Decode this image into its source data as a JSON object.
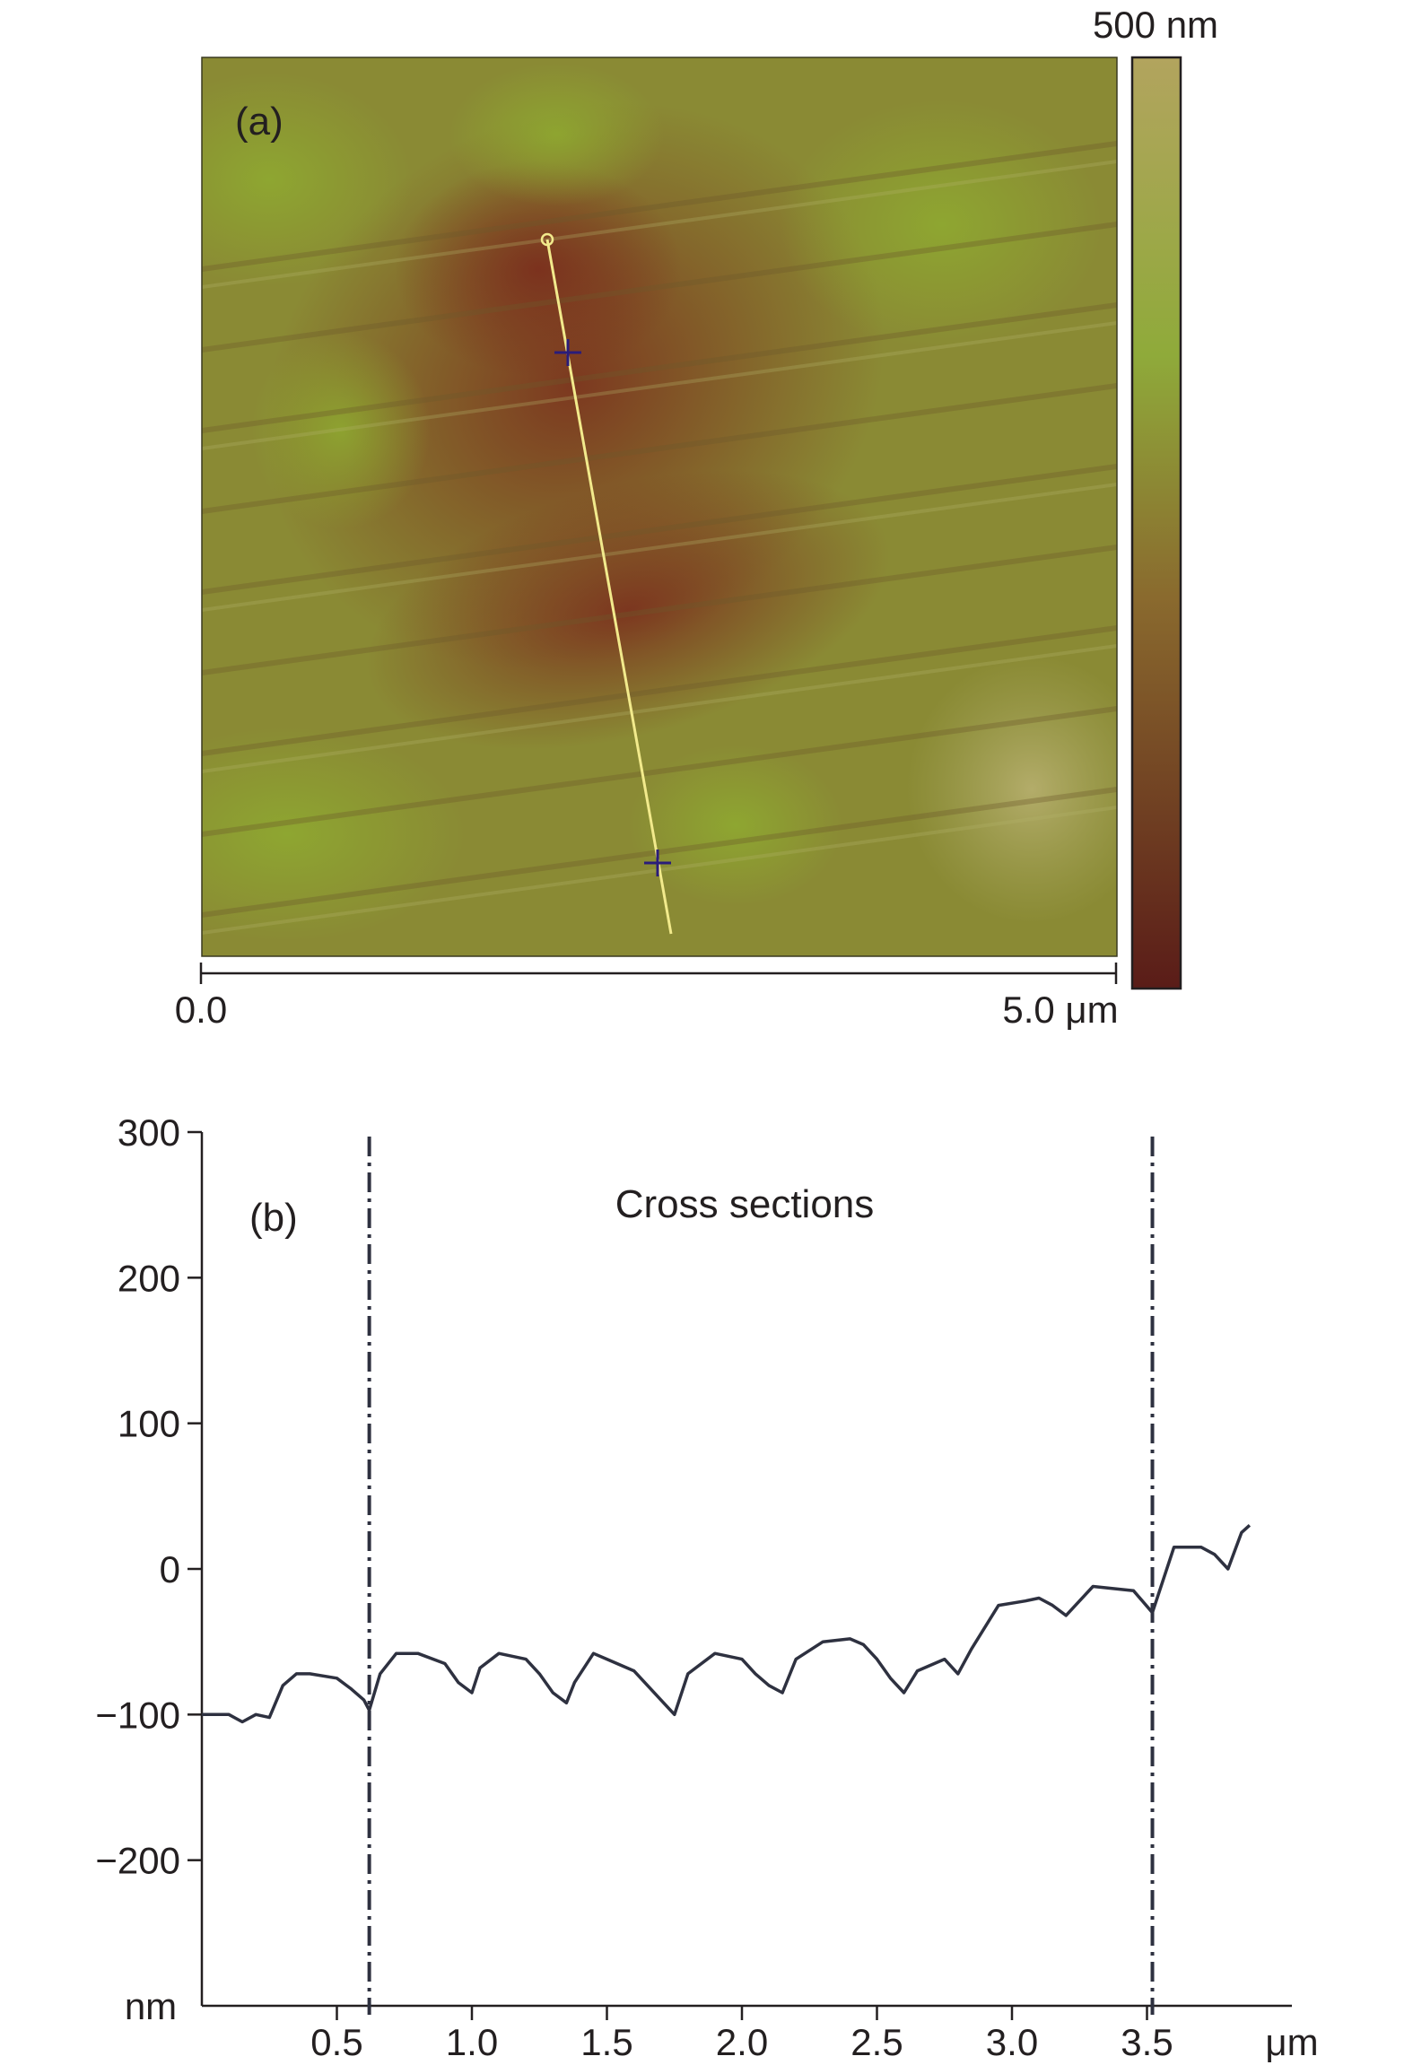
{
  "panel_a": {
    "label": "(a)",
    "scale_top_label": "500 nm",
    "x_start_label": "0.0",
    "x_end_label": "5.0 μm",
    "colorbar_colors": {
      "high": "#b2a45e",
      "mid_high": "#8faa3a",
      "mid": "#8a6a2e",
      "low": "#5a1c18"
    },
    "profile_line_color": "#f2ea8c",
    "marker_color": "#2a1c7a"
  },
  "panel_b": {
    "label": "(b)",
    "title": "Cross sections",
    "y_unit": "nm",
    "x_unit": "μm",
    "line_color": "#2e3140"
  },
  "chart_data": {
    "type": "line",
    "title": "Cross sections",
    "xlabel": "μm",
    "ylabel": "nm",
    "xlim": [
      0,
      4.0
    ],
    "ylim": [
      -300,
      300
    ],
    "x_ticks": [
      "0.5",
      "1.0",
      "1.5",
      "2.0",
      "2.5",
      "3.0",
      "3.5"
    ],
    "y_ticks": [
      "300",
      "200",
      "100",
      "0",
      "−100",
      "−200"
    ],
    "markers_x": [
      0.62,
      3.52
    ],
    "series": [
      {
        "x": [
          0.0,
          0.1,
          0.15,
          0.2,
          0.25,
          0.3,
          0.35,
          0.4,
          0.5,
          0.55,
          0.6,
          0.62,
          0.66,
          0.72,
          0.8,
          0.9,
          0.95,
          1.0,
          1.03,
          1.1,
          1.2,
          1.25,
          1.3,
          1.35,
          1.38,
          1.45,
          1.5,
          1.6,
          1.7,
          1.75,
          1.8,
          1.9,
          2.0,
          2.05,
          2.1,
          2.15,
          2.2,
          2.3,
          2.4,
          2.45,
          2.5,
          2.55,
          2.6,
          2.65,
          2.75,
          2.8,
          2.85,
          2.95,
          3.05,
          3.1,
          3.15,
          3.2,
          3.3,
          3.45,
          3.52,
          3.6,
          3.7,
          3.75,
          3.8,
          3.85,
          3.88
        ],
        "y": [
          -100,
          -100,
          -105,
          -100,
          -102,
          -80,
          -72,
          -72,
          -75,
          -82,
          -90,
          -97,
          -72,
          -58,
          -58,
          -65,
          -78,
          -85,
          -68,
          -58,
          -62,
          -72,
          -85,
          -92,
          -78,
          -58,
          -62,
          -70,
          -90,
          -100,
          -72,
          -58,
          -62,
          -72,
          -80,
          -85,
          -62,
          -50,
          -48,
          -52,
          -62,
          -75,
          -85,
          -70,
          -62,
          -72,
          -55,
          -25,
          -22,
          -20,
          -25,
          -32,
          -12,
          -15,
          -30,
          15,
          15,
          10,
          0,
          25,
          30
        ]
      }
    ]
  }
}
